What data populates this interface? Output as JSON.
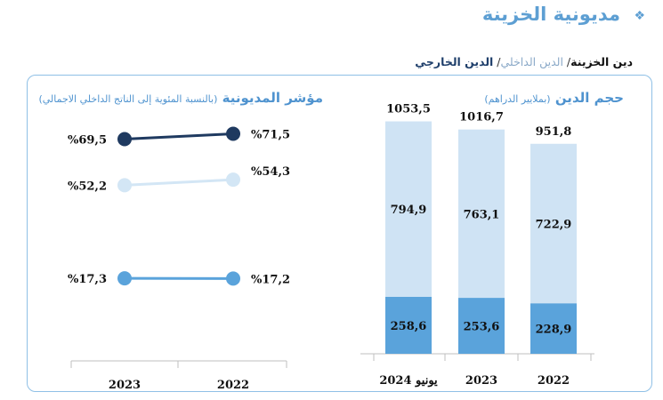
{
  "header": {
    "title": "مديونية الخزينة",
    "bullet": "❖"
  },
  "subtitle": {
    "total": "دين الخزينة",
    "domestic": "الدين الداخلي",
    "external": "الدين الخارجي",
    "separator": "/"
  },
  "chart_data": [
    {
      "type": "bar",
      "title": "حجم الدين",
      "unit": "(بملايير الدراهم)",
      "categories": [
        "يونيو 2024",
        "2023",
        "2022"
      ],
      "series": [
        {
          "values": [
            258.6,
            253.6,
            228.9
          ],
          "labels": [
            "258,6",
            "253,6",
            "228,9"
          ],
          "color": "#5aa3db"
        },
        {
          "values": [
            794.9,
            763.1,
            722.9
          ],
          "labels": [
            "794,9",
            "763,1",
            "722,9"
          ],
          "color": "#cfe3f4"
        }
      ],
      "totals": [
        1053.5,
        1016.7,
        951.8
      ],
      "total_labels": [
        "1053,5",
        "1016,7",
        "951,8"
      ],
      "stacked": true,
      "ylim": [
        0,
        1100
      ]
    },
    {
      "type": "line",
      "title": "مؤشر المديونية",
      "unit": "(بالنسبة المئوية إلى الناتج الداخلي الاجمالي)",
      "categories": [
        "2023",
        "2022"
      ],
      "series": [
        {
          "values": [
            69.5,
            71.5
          ],
          "labels": [
            "%69,5",
            "%71,5"
          ],
          "color": "#1f3a60"
        },
        {
          "values": [
            52.2,
            54.3
          ],
          "labels": [
            "%52,2",
            "%54,3"
          ],
          "color": "#d3e6f5"
        },
        {
          "values": [
            17.3,
            17.2
          ],
          "labels": [
            "%17,3",
            "%17,2"
          ],
          "color": "#5aa3db"
        }
      ]
    }
  ]
}
